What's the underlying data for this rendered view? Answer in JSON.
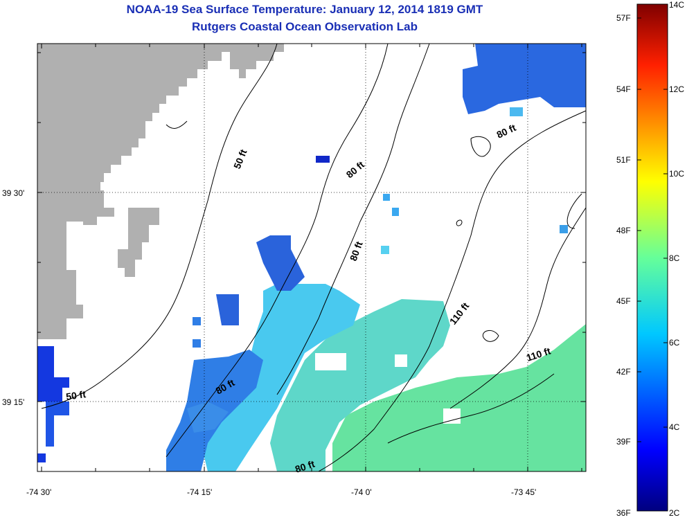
{
  "title": "NOAA-19 Sea Surface Temperature:  January 12, 2014 1819 GMT",
  "subtitle": "Rutgers Coastal Ocean Observation Lab",
  "x_ticks": [
    "-74 30'",
    "-74 15'",
    "-74 0'",
    "-73 45'"
  ],
  "y_ticks": [
    "39 30'",
    "39 15'"
  ],
  "contour_labels": [
    "50 ft",
    "50 ft",
    "80 ft",
    "80 ft",
    "80 ft",
    "80 ft",
    "80 ft",
    "110 ft",
    "110 ft"
  ],
  "colorbar": {
    "fahrenheit_labels": [
      "57F",
      "54F",
      "51F",
      "48F",
      "45F",
      "42F",
      "39F",
      "36F"
    ],
    "celsius_labels": [
      "14C",
      "12C",
      "10C",
      "8C",
      "6C",
      "4C",
      "2C"
    ],
    "range_c": [
      2,
      14
    ]
  },
  "colors": {
    "land": "#b0b0b0",
    "title": "#1a2fb5"
  }
}
